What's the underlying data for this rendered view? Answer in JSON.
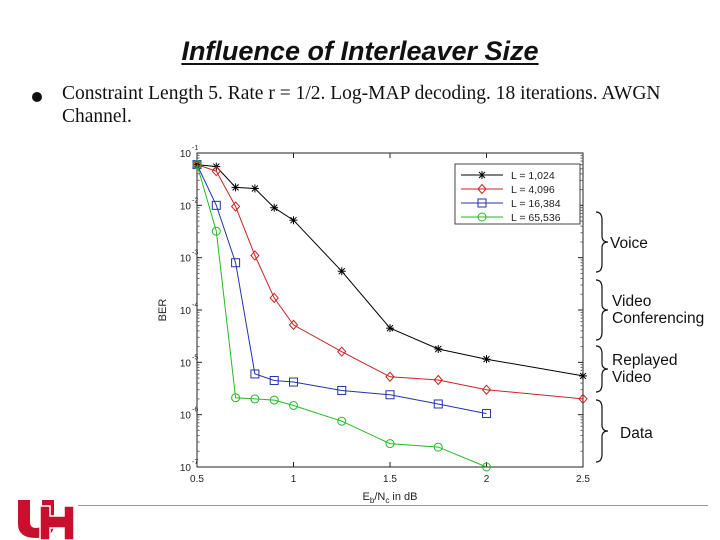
{
  "slide": {
    "title": "Influence of Interleaver Size",
    "bullet": "Constraint Length 5. Rate r = 1/2. Log-MAP decoding. 18 iterations. AWGN Channel.",
    "logo_text": "UH",
    "colors": {
      "logo": "#c8102e",
      "text": "#111111"
    }
  },
  "braces": [
    {
      "label": "Voice"
    },
    {
      "label": "Video\nConferencing"
    },
    {
      "label": "Replayed\nVideo"
    },
    {
      "label": "Data"
    }
  ],
  "chart_data": {
    "type": "line",
    "title": "",
    "xlabel": "E_b/N_c in dB",
    "xlabel_parts": {
      "main": "E",
      "sub1": "b",
      "mid": "/N",
      "sub2": "c",
      "tail": " in dB"
    },
    "ylabel": "BER",
    "xlim": [
      0.5,
      2.5
    ],
    "ylim_log10": [
      -7,
      -1
    ],
    "y_scale": "log",
    "x_ticks": [
      {
        "value": 0.5,
        "label": "0.5"
      },
      {
        "value": 1.0,
        "label": "1"
      },
      {
        "value": 1.5,
        "label": "1.5"
      },
      {
        "value": 2.0,
        "label": "2"
      },
      {
        "value": 2.5,
        "label": "2.5"
      }
    ],
    "y_ticks": [
      {
        "exp": -1,
        "base": "10",
        "sup": "-1"
      },
      {
        "exp": -2,
        "base": "10",
        "sup": "-2"
      },
      {
        "exp": -3,
        "base": "10",
        "sup": "-3"
      },
      {
        "exp": -4,
        "base": "10",
        "sup": "-4"
      },
      {
        "exp": -5,
        "base": "10",
        "sup": "-5"
      },
      {
        "exp": -6,
        "base": "10",
        "sup": "-6"
      },
      {
        "exp": -7,
        "base": "10",
        "sup": "-7"
      }
    ],
    "series": [
      {
        "name": "L = 1,024",
        "color": "#000000",
        "marker": "star",
        "x": [
          0.5,
          0.6,
          0.7,
          0.8,
          0.9,
          1.0,
          1.25,
          1.5,
          1.75,
          2.0,
          2.5
        ],
        "y": [
          0.06,
          0.055,
          0.022,
          0.021,
          0.009,
          0.0052,
          0.00055,
          4.5e-05,
          1.8e-05,
          1.15e-05,
          5.5e-06
        ]
      },
      {
        "name": "L = 4,096",
        "color": "#cc2222",
        "marker": "diamond",
        "x": [
          0.5,
          0.6,
          0.7,
          0.8,
          0.9,
          1.0,
          1.25,
          1.5,
          1.75,
          2.0,
          2.5
        ],
        "y": [
          0.06,
          0.045,
          0.0095,
          0.0011,
          0.00017,
          5.2e-05,
          1.6e-05,
          5.3e-06,
          4.6e-06,
          3e-06,
          2e-06
        ]
      },
      {
        "name": "L = 16,384",
        "color": "#2233aa",
        "marker": "square",
        "x": [
          0.5,
          0.6,
          0.7,
          0.8,
          0.9,
          1.0,
          1.25,
          1.5,
          1.75,
          2.0
        ],
        "y": [
          0.06,
          0.01,
          0.0008,
          6e-06,
          4.5e-06,
          4.2e-06,
          2.9e-06,
          2.4e-06,
          1.6e-06,
          1.05e-06
        ]
      },
      {
        "name": "L = 65,536",
        "color": "#22bb22",
        "marker": "circle",
        "x": [
          0.5,
          0.6,
          0.7,
          0.8,
          0.9,
          1.0,
          1.25,
          1.5,
          1.75,
          2.0
        ],
        "y": [
          0.06,
          0.0032,
          2.1e-06,
          2e-06,
          1.9e-06,
          1.5e-06,
          7.5e-07,
          2.8e-07,
          2.4e-07,
          1e-07
        ]
      }
    ],
    "legend_position": "top-right",
    "legend_labels": [
      "L = 1,024",
      "L = 4,096",
      "L = 16,384",
      "L = 65,536"
    ]
  }
}
